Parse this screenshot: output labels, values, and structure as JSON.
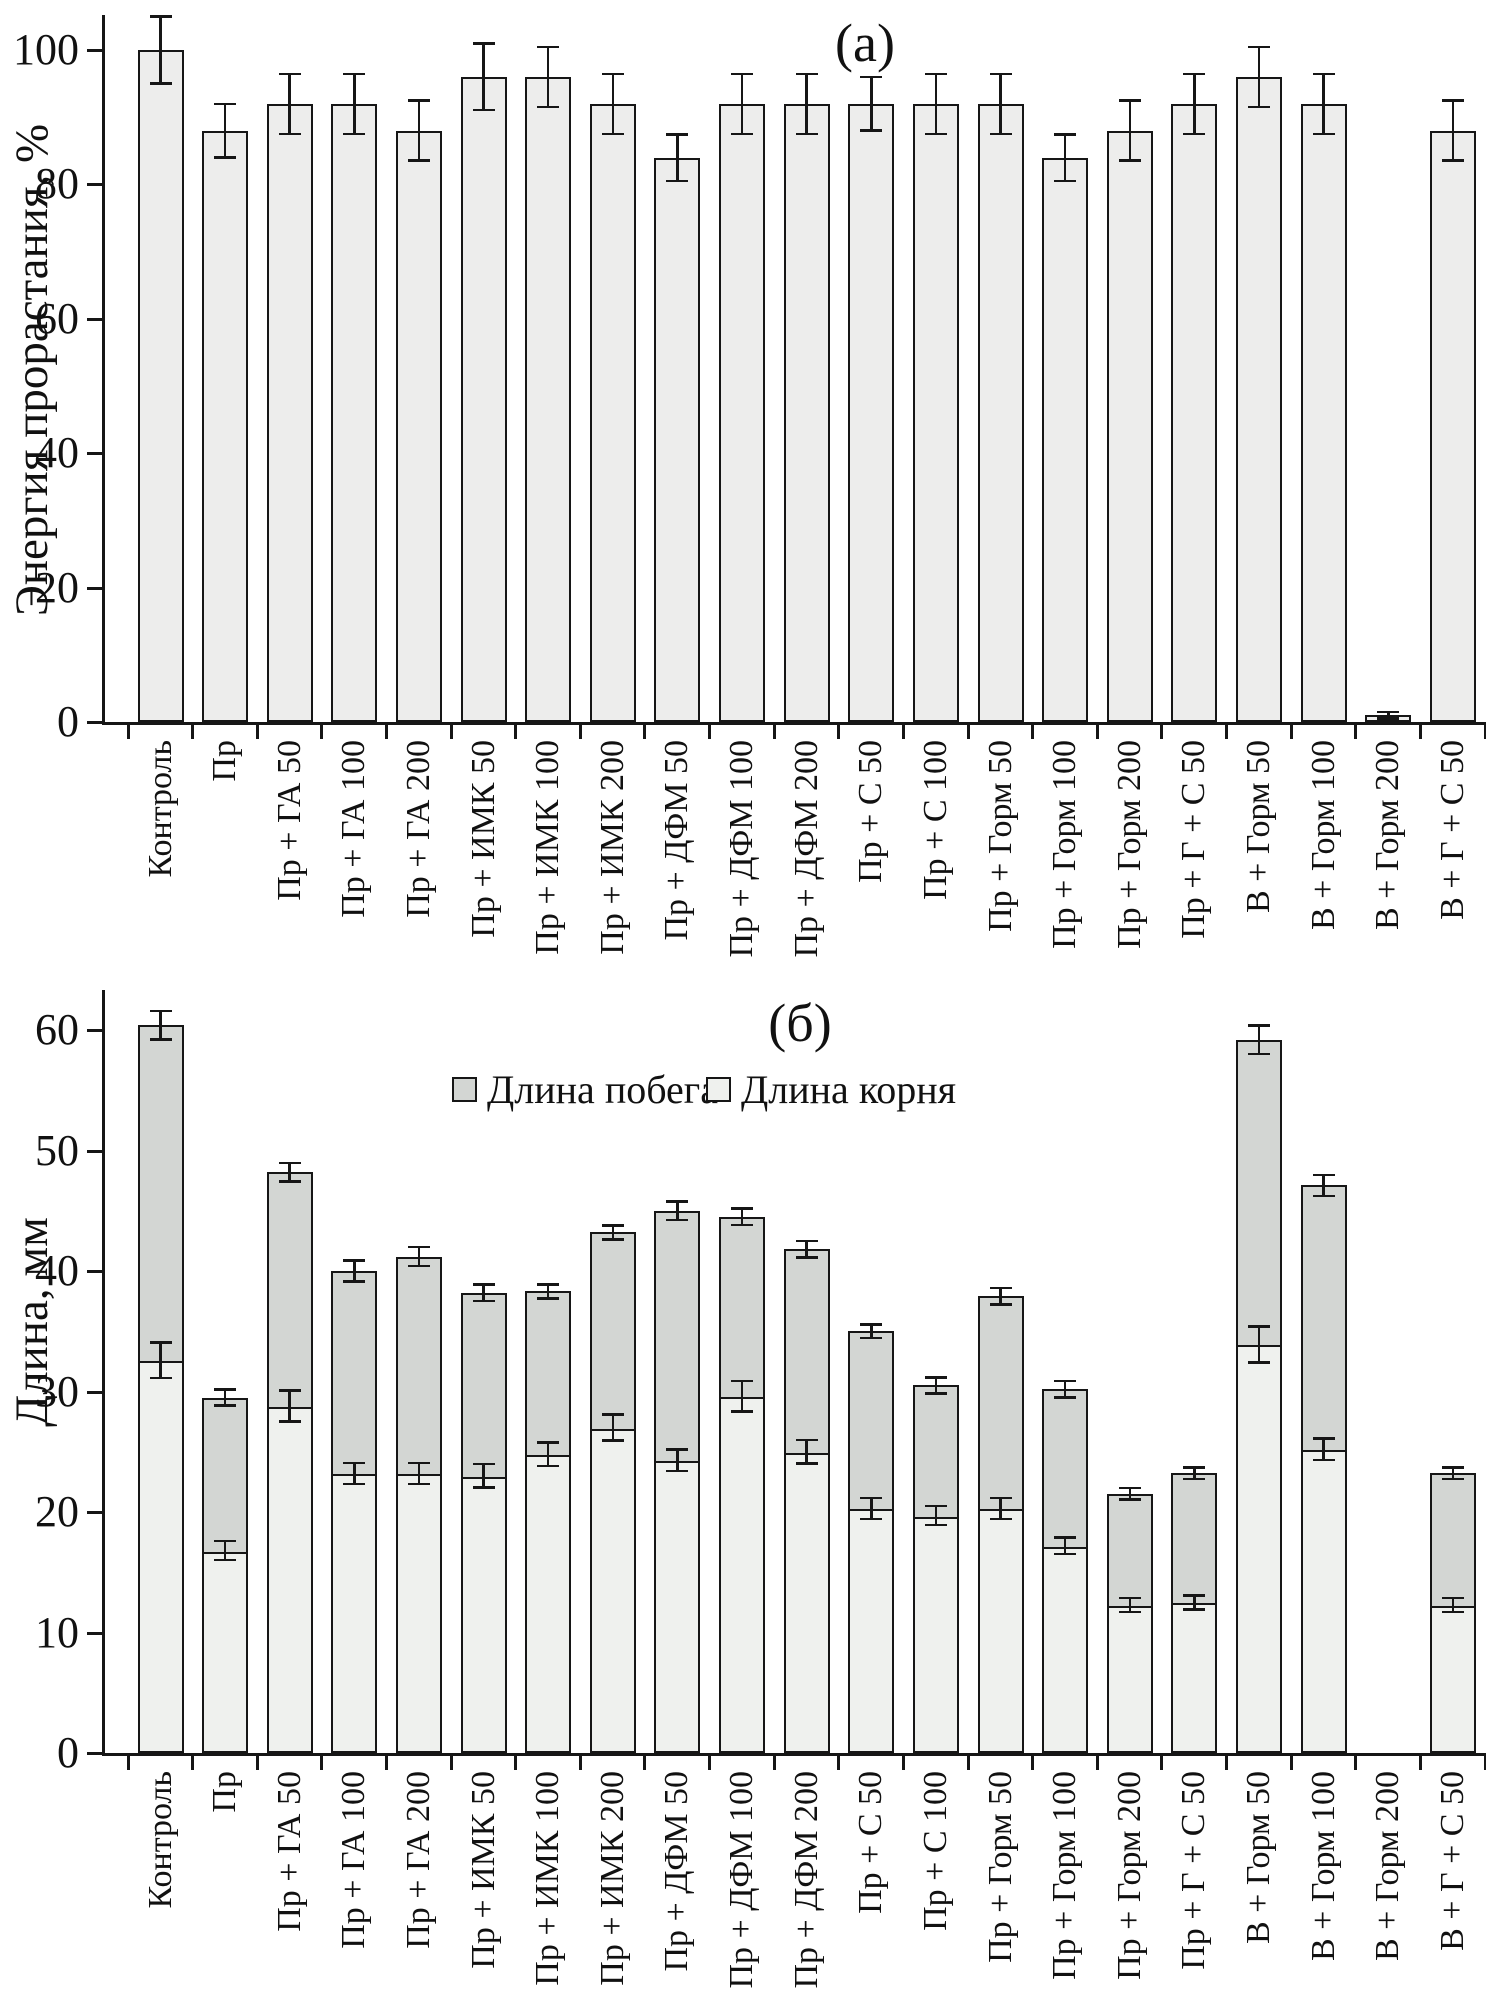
{
  "figure": {
    "background": "#ffffff",
    "ink_color": "#161616",
    "bar_border_color": "#161616"
  },
  "chart_data": [
    {
      "type": "bar",
      "title": "(а)",
      "ylabel": "Энергия прорастания, %",
      "ylim": [
        0,
        106
      ],
      "yticks": [
        0,
        20,
        40,
        60,
        80,
        100
      ],
      "grid": false,
      "bar_color": "#ededec",
      "categories": [
        "Контроль",
        "Пр",
        "Пр + ГА 50",
        "Пр + ГА 100",
        "Пр + ГА 200",
        "Пр + ИМК 50",
        "Пр + ИМК 100",
        "Пр + ИМК 200",
        "Пр + ДФМ 50",
        "Пр + ДФМ 100",
        "Пр + ДФМ 200",
        "Пр + С 50",
        "Пр + С 100",
        "Пр + Горм 50",
        "Пр + Горм 100",
        "Пр + Горм 200",
        "Пр + Г + С 50",
        "В + Горм 50",
        "В + Горм 100",
        "В + Горм 200",
        "В + Г + С 50"
      ],
      "values": [
        100,
        88,
        92,
        92,
        88,
        96,
        96,
        92,
        84,
        92,
        92,
        92,
        92,
        92,
        84,
        88,
        92,
        96,
        92,
        1,
        88
      ],
      "errors": [
        5,
        4,
        4.5,
        4.5,
        4.5,
        5,
        4.5,
        4.5,
        3.5,
        4.5,
        4.5,
        4,
        4.5,
        4.5,
        3.5,
        4.5,
        4.5,
        4.5,
        4.5,
        0.5,
        4.5
      ]
    },
    {
      "type": "bar",
      "subtype": "stacked",
      "title": "(б)",
      "ylabel": "Длина, мм",
      "ylim": [
        0,
        63
      ],
      "yticks": [
        0,
        10,
        20,
        30,
        40,
        50,
        60
      ],
      "grid": false,
      "legend_position": "top-center",
      "categories": [
        "Контроль",
        "Пр",
        "Пр + ГА 50",
        "Пр + ГА 100",
        "Пр + ГА 200",
        "Пр + ИМК 50",
        "Пр + ИМК 100",
        "Пр + ИМК 200",
        "Пр + ДФМ 50",
        "Пр + ДФМ 100",
        "Пр + ДФМ 200",
        "Пр + С 50",
        "Пр + С 100",
        "Пр + Горм 50",
        "Пр + Горм 100",
        "Пр + Горм 200",
        "Пр + Г + С 50",
        "В + Горм 50",
        "В + Горм 100",
        "В + Горм 200",
        "В + Г + С 50"
      ],
      "series": [
        {
          "name": "Длина корня",
          "role": "root-bottom-segment",
          "color": "#eff1ee",
          "values": [
            32.6,
            16.8,
            28.8,
            23.2,
            23.2,
            23.0,
            24.8,
            27.0,
            24.3,
            29.6,
            25.0,
            20.3,
            19.7,
            20.3,
            17.2,
            12.3,
            12.5,
            33.9,
            25.2,
            0,
            12.3
          ],
          "errors": [
            1.5,
            0.8,
            1.3,
            0.9,
            0.9,
            1.0,
            1.0,
            1.1,
            0.9,
            1.3,
            1.0,
            0.9,
            0.8,
            0.9,
            0.7,
            0.6,
            0.6,
            1.5,
            0.9,
            0,
            0.6
          ]
        },
        {
          "name": "Длина побега",
          "role": "shoot-top-segment",
          "color": "#d3d6d3",
          "values": [
            27.8,
            12.7,
            19.4,
            16.8,
            18.0,
            15.2,
            13.5,
            16.2,
            20.7,
            14.9,
            16.8,
            14.7,
            10.8,
            17.6,
            13.0,
            9.2,
            10.7,
            25.3,
            21.9,
            0,
            10.9
          ]
        }
      ],
      "totals": [
        60.4,
        29.5,
        48.2,
        40.0,
        41.2,
        38.2,
        38.3,
        43.2,
        45.0,
        44.5,
        41.8,
        35.0,
        30.5,
        37.9,
        30.2,
        21.5,
        23.2,
        59.2,
        47.1,
        0,
        23.2
      ],
      "total_errors": [
        1.2,
        0.7,
        0.8,
        0.9,
        0.8,
        0.7,
        0.6,
        0.6,
        0.8,
        0.7,
        0.7,
        0.6,
        0.7,
        0.7,
        0.7,
        0.5,
        0.5,
        1.2,
        0.9,
        0,
        0.5
      ],
      "legend": [
        {
          "label": "Длина побега",
          "color": "#d3d6d3"
        },
        {
          "label": "Длина корня",
          "color": "#eff1ee"
        }
      ]
    }
  ]
}
